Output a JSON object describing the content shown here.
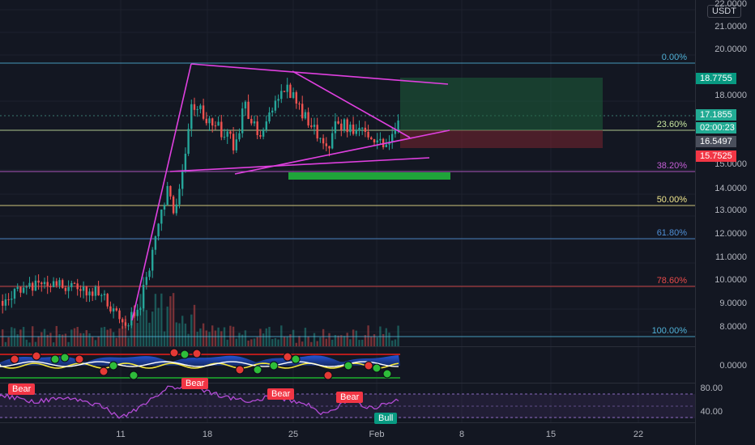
{
  "currency": "USDT",
  "price_axis": [
    "22.0000",
    "21.0000",
    "20.0000",
    "18.0000",
    "15.0000",
    "14.0000",
    "13.0000",
    "12.0000",
    "11.0000",
    "10.0000",
    "9.0000",
    "8.0000"
  ],
  "price_tags": [
    {
      "value": "18.7755",
      "bg": "#089981",
      "color": "#ffffff"
    },
    {
      "value": "17.1855",
      "bg": "#22ab94",
      "color": "#ffffff"
    },
    {
      "value": "02:00:23",
      "bg": "#22ab94",
      "color": "#ffffff"
    },
    {
      "value": "16.5497",
      "bg": "#4a4f5c",
      "color": "#ffffff"
    },
    {
      "value": "15.7525",
      "bg": "#f23645",
      "color": "#ffffff"
    }
  ],
  "fib_levels": [
    {
      "label": "0.00%",
      "color": "#4fb0d6"
    },
    {
      "label": "23.60%",
      "color": "#c8e6a0"
    },
    {
      "label": "38.20%",
      "color": "#c45fd6"
    },
    {
      "label": "50.00%",
      "color": "#f0e68c"
    },
    {
      "label": "61.80%",
      "color": "#4f8fd6"
    },
    {
      "label": "78.60%",
      "color": "#e84a4a"
    },
    {
      "label": "100.00%",
      "color": "#4fb0d6"
    }
  ],
  "osc_axis": [
    "0.0000"
  ],
  "rsi_axis": [
    "80.00",
    "40.00"
  ],
  "rsi_labels": {
    "bear": "Bear",
    "bull": "Bull"
  },
  "time_axis": [
    "11",
    "18",
    "25",
    "Feb",
    "8",
    "15",
    "22"
  ],
  "colors": {
    "up": "#26a69a",
    "down": "#ef5350",
    "pattern": "#e040e0",
    "bg": "#131722"
  }
}
